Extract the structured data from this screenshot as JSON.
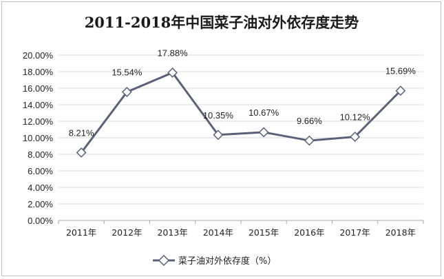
{
  "chart_data": {
    "type": "line",
    "title": "2011-2018年中国菜子油对外依存度走势",
    "categories": [
      "2011年",
      "2012年",
      "2013年",
      "2014年",
      "2015年",
      "2016年",
      "2017年",
      "2018年"
    ],
    "series": [
      {
        "name": "菜子油对外依存度（%）",
        "values": [
          8.21,
          15.54,
          17.88,
          10.35,
          10.67,
          9.66,
          10.12,
          15.69
        ],
        "labels": [
          "8.21%",
          "15.54%",
          "17.88%",
          "10.35%",
          "10.67%",
          "9.66%",
          "10.12%",
          "15.69%"
        ]
      }
    ],
    "yticks": [
      "0.00%",
      "2.00%",
      "4.00%",
      "6.00%",
      "8.00%",
      "10.00%",
      "12.00%",
      "14.00%",
      "16.00%",
      "18.00%",
      "20.00%"
    ],
    "ylim": [
      0,
      20
    ],
    "grid": true,
    "legend_position": "bottom",
    "colors": {
      "line": "#5a6279",
      "marker_fill": "#ffffff",
      "grid": "#d9d9d9"
    }
  }
}
